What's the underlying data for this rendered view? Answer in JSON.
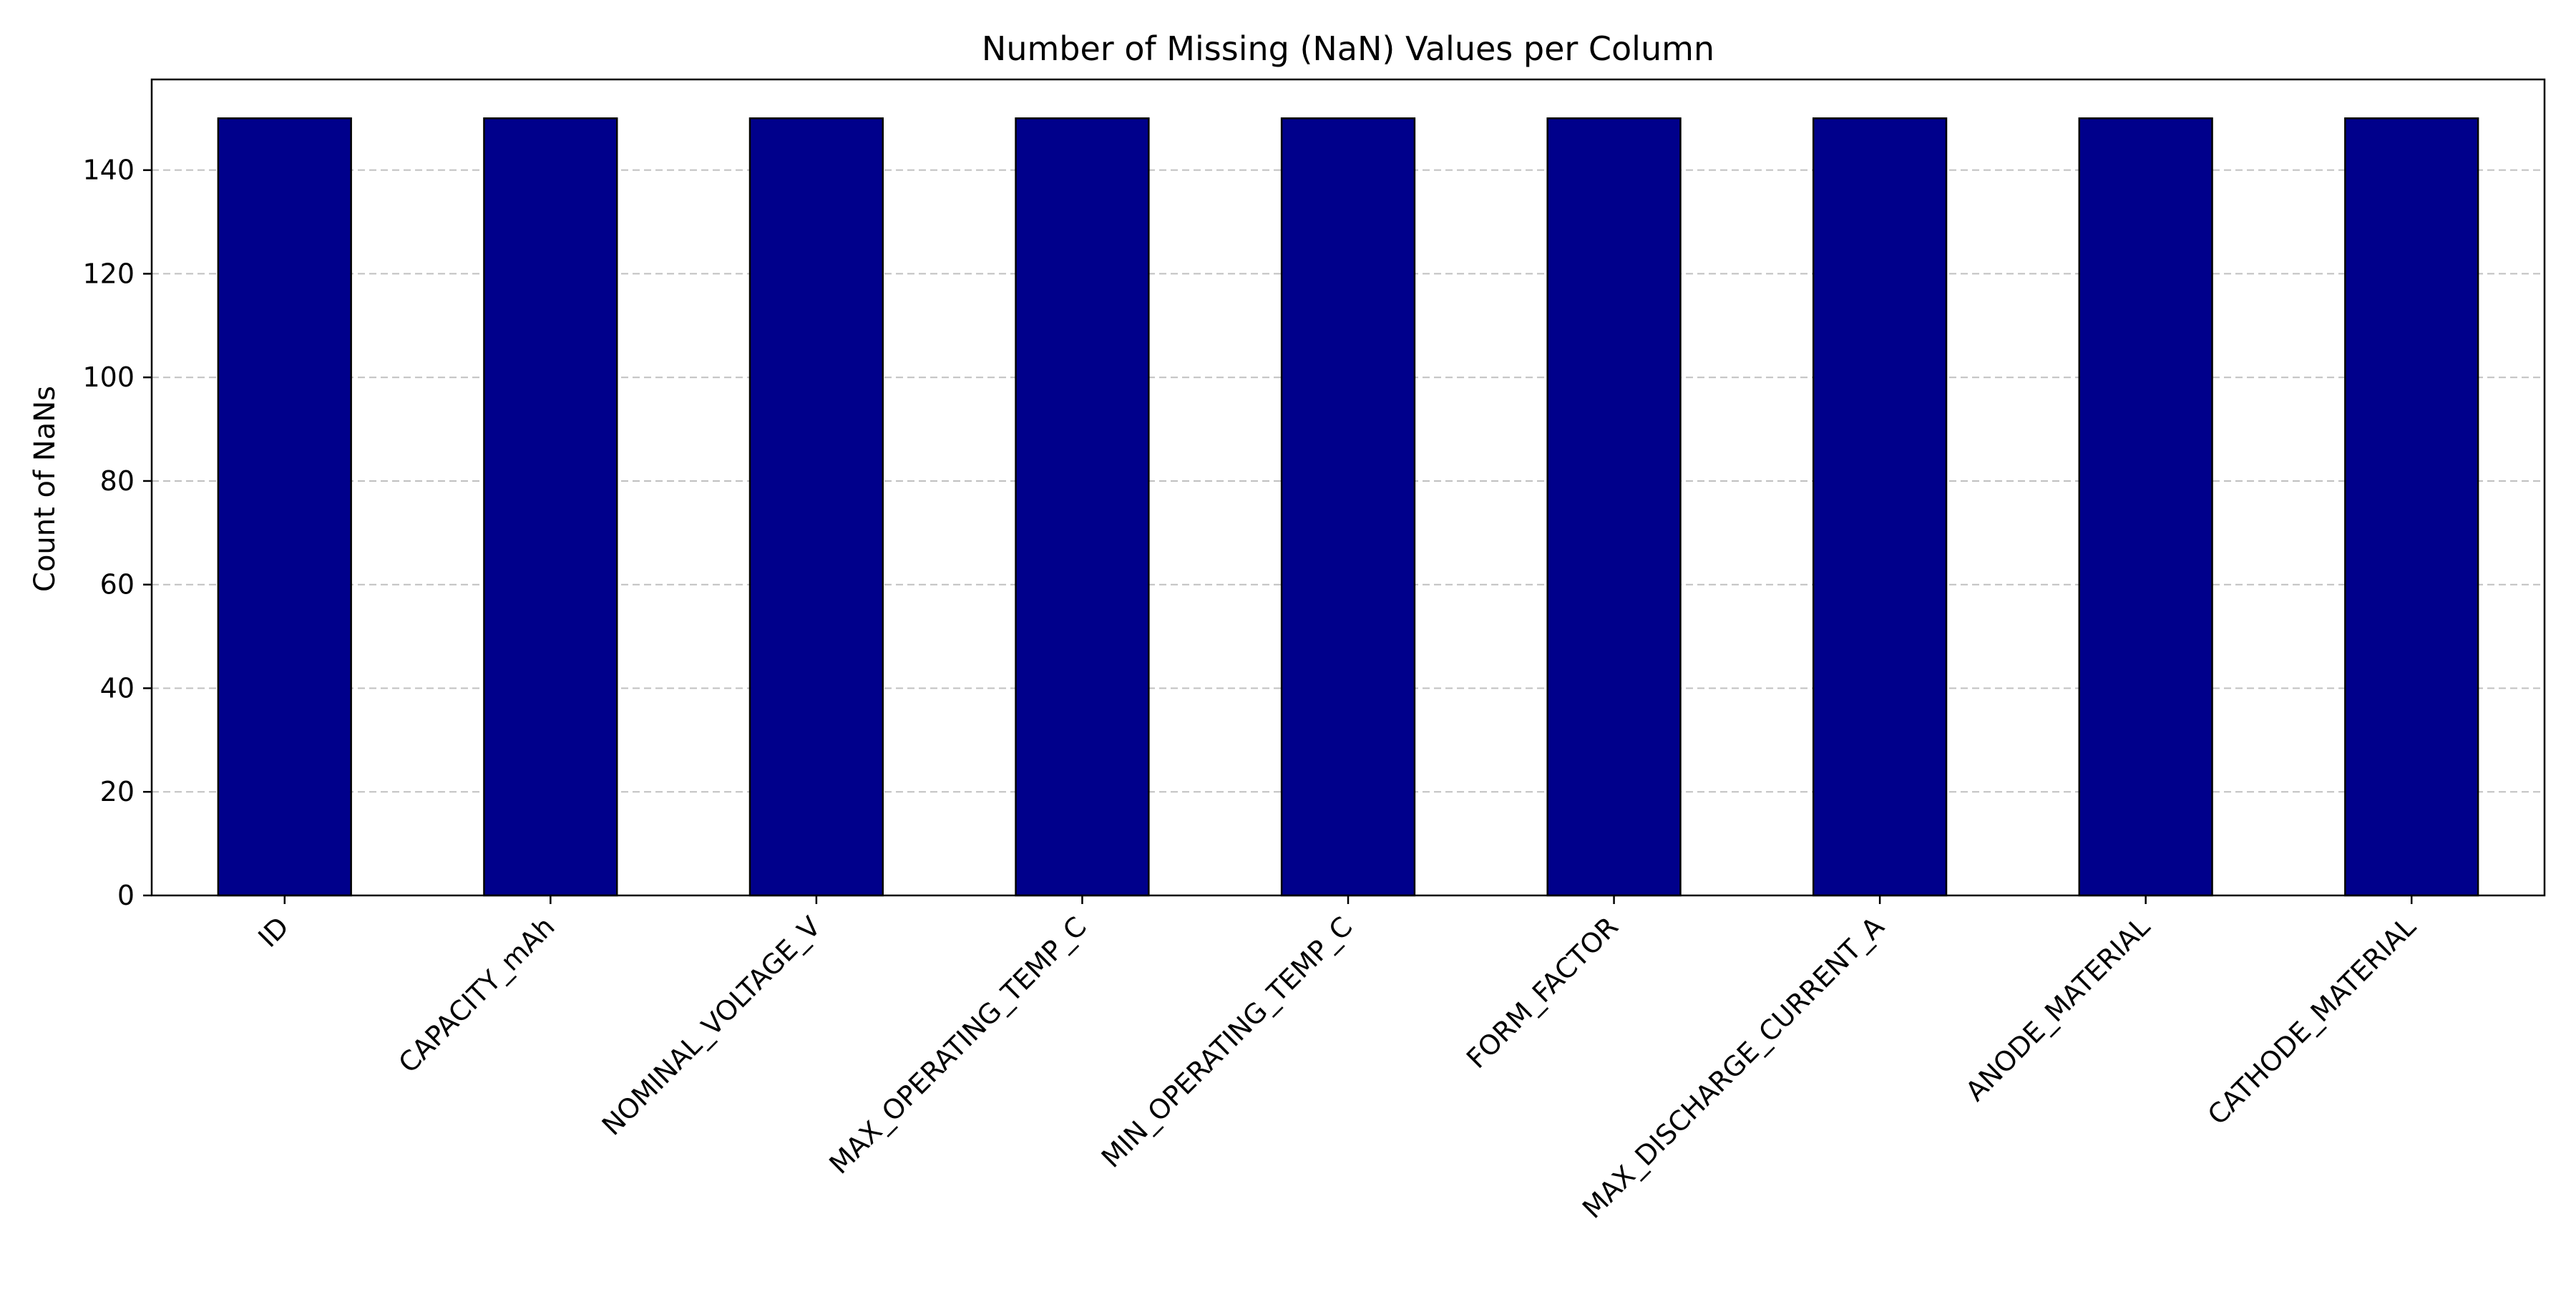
{
  "chart_data": {
    "type": "bar",
    "title": "Number of Missing (NaN) Values per Column",
    "xlabel": "",
    "ylabel": "Count of NaNs",
    "categories": [
      "ID",
      "CAPACITY_mAh",
      "NOMINAL_VOLTAGE_V",
      "MAX_OPERATING_TEMP_C",
      "MIN_OPERATING_TEMP_C",
      "FORM_FACTOR",
      "MAX_DISCHARGE_CURRENT_A",
      "ANODE_MATERIAL",
      "CATHODE_MATERIAL"
    ],
    "values": [
      150,
      150,
      150,
      150,
      150,
      150,
      150,
      150,
      150
    ],
    "ylim": [
      0,
      157.5
    ],
    "yticks": [
      0,
      20,
      40,
      60,
      80,
      100,
      120,
      140
    ],
    "grid": "y-dashed",
    "legend": "none",
    "colors": {
      "bar_fill": "#00008B",
      "bar_edge": "#000000",
      "grid": "#c0c0c0",
      "axis": "#000000"
    }
  }
}
